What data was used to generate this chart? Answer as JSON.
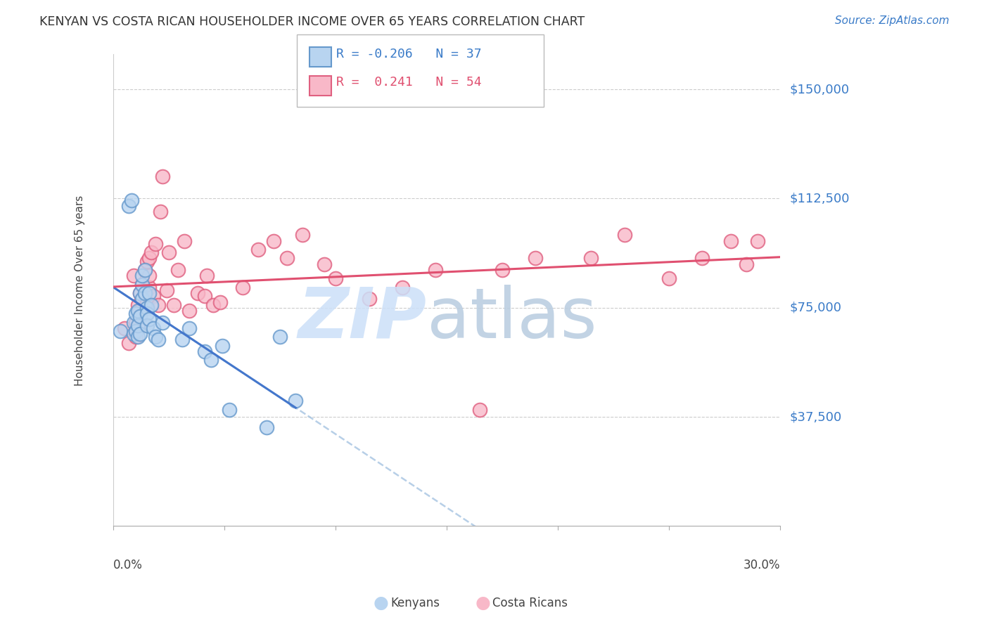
{
  "title": "KENYAN VS COSTA RICAN HOUSEHOLDER INCOME OVER 65 YEARS CORRELATION CHART",
  "source": "Source: ZipAtlas.com",
  "ylabel": "Householder Income Over 65 years",
  "ytick_labels": [
    "$37,500",
    "$75,000",
    "$112,500",
    "$150,000"
  ],
  "ytick_values": [
    37500,
    75000,
    112500,
    150000
  ],
  "ymin": 0,
  "ymax": 162000,
  "xmin": 0.0,
  "xmax": 0.3,
  "kenyan_color_face": "#b8d4f0",
  "kenyan_color_edge": "#6699cc",
  "costarican_color_face": "#f8b8c8",
  "costarican_color_edge": "#e06080",
  "kenyan_line_color": "#4477cc",
  "costarican_line_color": "#e05070",
  "dashed_line_color": "#99bbdd",
  "watermark_zip_color": "#cce0f8",
  "watermark_atlas_color": "#b8cce0",
  "kenyan_scatter_x": [
    0.003,
    0.007,
    0.008,
    0.009,
    0.009,
    0.01,
    0.01,
    0.011,
    0.011,
    0.011,
    0.012,
    0.012,
    0.012,
    0.013,
    0.013,
    0.013,
    0.014,
    0.014,
    0.015,
    0.015,
    0.015,
    0.016,
    0.016,
    0.017,
    0.018,
    0.019,
    0.02,
    0.022,
    0.031,
    0.034,
    0.041,
    0.044,
    0.049,
    0.052,
    0.069,
    0.075,
    0.082
  ],
  "kenyan_scatter_y": [
    67000,
    110000,
    112000,
    70000,
    66000,
    67000,
    73000,
    65000,
    69000,
    74000,
    66000,
    72000,
    80000,
    83000,
    78000,
    86000,
    88000,
    80000,
    75000,
    73000,
    69000,
    71000,
    80000,
    76000,
    68000,
    65000,
    64000,
    70000,
    64000,
    68000,
    60000,
    57000,
    62000,
    40000,
    34000,
    65000,
    43000
  ],
  "costarican_scatter_x": [
    0.005,
    0.007,
    0.009,
    0.01,
    0.01,
    0.011,
    0.011,
    0.012,
    0.012,
    0.013,
    0.013,
    0.014,
    0.015,
    0.015,
    0.016,
    0.016,
    0.016,
    0.017,
    0.018,
    0.019,
    0.02,
    0.021,
    0.022,
    0.024,
    0.025,
    0.027,
    0.029,
    0.032,
    0.034,
    0.038,
    0.041,
    0.042,
    0.045,
    0.048,
    0.058,
    0.065,
    0.072,
    0.078,
    0.085,
    0.095,
    0.1,
    0.115,
    0.13,
    0.145,
    0.165,
    0.175,
    0.19,
    0.215,
    0.23,
    0.25,
    0.265,
    0.278,
    0.285,
    0.29
  ],
  "costarican_scatter_y": [
    68000,
    63000,
    86000,
    65000,
    70000,
    68000,
    76000,
    74000,
    80000,
    78000,
    83000,
    88000,
    77000,
    91000,
    92000,
    82000,
    86000,
    94000,
    79000,
    97000,
    76000,
    108000,
    120000,
    81000,
    94000,
    76000,
    88000,
    98000,
    74000,
    80000,
    79000,
    86000,
    76000,
    77000,
    82000,
    95000,
    98000,
    92000,
    100000,
    90000,
    85000,
    78000,
    82000,
    88000,
    40000,
    88000,
    92000,
    92000,
    100000,
    85000,
    92000,
    98000,
    90000,
    98000
  ]
}
